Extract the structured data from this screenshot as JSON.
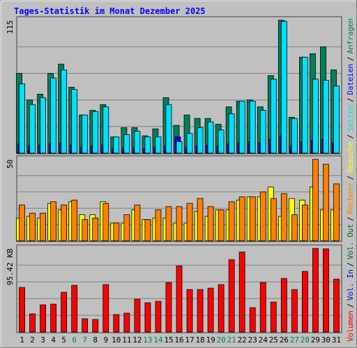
{
  "title": "Tages-Statistik im Monat Dezember 2025",
  "legend_separator": "/",
  "chart_data": [
    {
      "type": "bar",
      "ylim": [
        0,
        115
      ],
      "yticks": [
        115
      ],
      "grid": true,
      "series": [
        {
          "name": "Anfragen",
          "color": "#00805c",
          "values": [
            69,
            46,
            51,
            69,
            77,
            57,
            33,
            37,
            42,
            14,
            22,
            22,
            15,
            21,
            48,
            24,
            33,
            30,
            30,
            25,
            40,
            45,
            46,
            40,
            67,
            115,
            31,
            83,
            86,
            92,
            72
          ]
        },
        {
          "name": "Dateien",
          "color": "#0000ff",
          "values": [
            8,
            6,
            7,
            8,
            9,
            7,
            5,
            6,
            7,
            4,
            5,
            5,
            4,
            5,
            6,
            14,
            5,
            6,
            7,
            6,
            8,
            9,
            10,
            9,
            12,
            15,
            6,
            10,
            11,
            12,
            9
          ]
        },
        {
          "name": "Seiten",
          "color": "#00e0ff",
          "values": [
            60,
            42,
            48,
            65,
            72,
            55,
            33,
            36,
            40,
            14,
            16,
            19,
            14,
            14,
            42,
            10,
            17,
            22,
            27,
            20,
            34,
            45,
            45,
            37,
            64,
            114,
            30,
            83,
            64,
            63,
            58
          ]
        }
      ]
    },
    {
      "type": "bar",
      "ylim": [
        0,
        50
      ],
      "yticks": [
        50
      ],
      "grid": true,
      "series": [
        {
          "name": "Besuche",
          "color": "#ffff00",
          "values": [
            14,
            15,
            14,
            23,
            19,
            24,
            16,
            16,
            24,
            11,
            11,
            19,
            13,
            14,
            14,
            11,
            11,
            18,
            15,
            19,
            19,
            25,
            27,
            27,
            33,
            15,
            26,
            25,
            33,
            19,
            19
          ]
        },
        {
          "name": "Rechner",
          "color": "#ff8000",
          "values": [
            22,
            17,
            17,
            24,
            22,
            25,
            13,
            14,
            23,
            11,
            16,
            22,
            13,
            19,
            21,
            21,
            23,
            26,
            21,
            19,
            24,
            27,
            27,
            30,
            26,
            29,
            16,
            22,
            50,
            47,
            35
          ]
        }
      ]
    },
    {
      "type": "bar",
      "ylim": [
        0,
        95.42
      ],
      "yticks": [
        {
          "value": 95.42,
          "label": "95.42 KB"
        }
      ],
      "grid": true,
      "categories": [
        "1",
        "2",
        "3",
        "4",
        "5",
        "6",
        "7",
        "8",
        "9",
        "10",
        "11",
        "12",
        "13",
        "14",
        "15",
        "16",
        "17",
        "18",
        "19",
        "20",
        "21",
        "22",
        "23",
        "24",
        "25",
        "26",
        "27",
        "28",
        "29",
        "30",
        "31"
      ],
      "highlight": {
        "color": "#00805c",
        "indices": [
          5,
          6,
          12,
          13,
          19,
          20,
          26,
          27
        ]
      },
      "series": [
        {
          "name": "Volumen",
          "color": "#ff0000",
          "values": [
            50.9,
            20.7,
            31,
            31.8,
            45.3,
            53.3,
            15.1,
            14.3,
            54.1,
            19.9,
            21.5,
            37.4,
            33.4,
            35,
            56.5,
            75.5,
            48.5,
            48.5,
            50.1,
            54.1,
            82.7,
            91.4,
            27.8,
            56.5,
            34.2,
            61.2,
            48.5,
            69.2,
            95.42,
            95,
            60.4
          ]
        }
      ],
      "legend_extra": [
        {
          "name": "Vol. In",
          "color": "#0000c0"
        },
        {
          "name": "Vol. Out",
          "color": "#006040"
        }
      ]
    }
  ]
}
